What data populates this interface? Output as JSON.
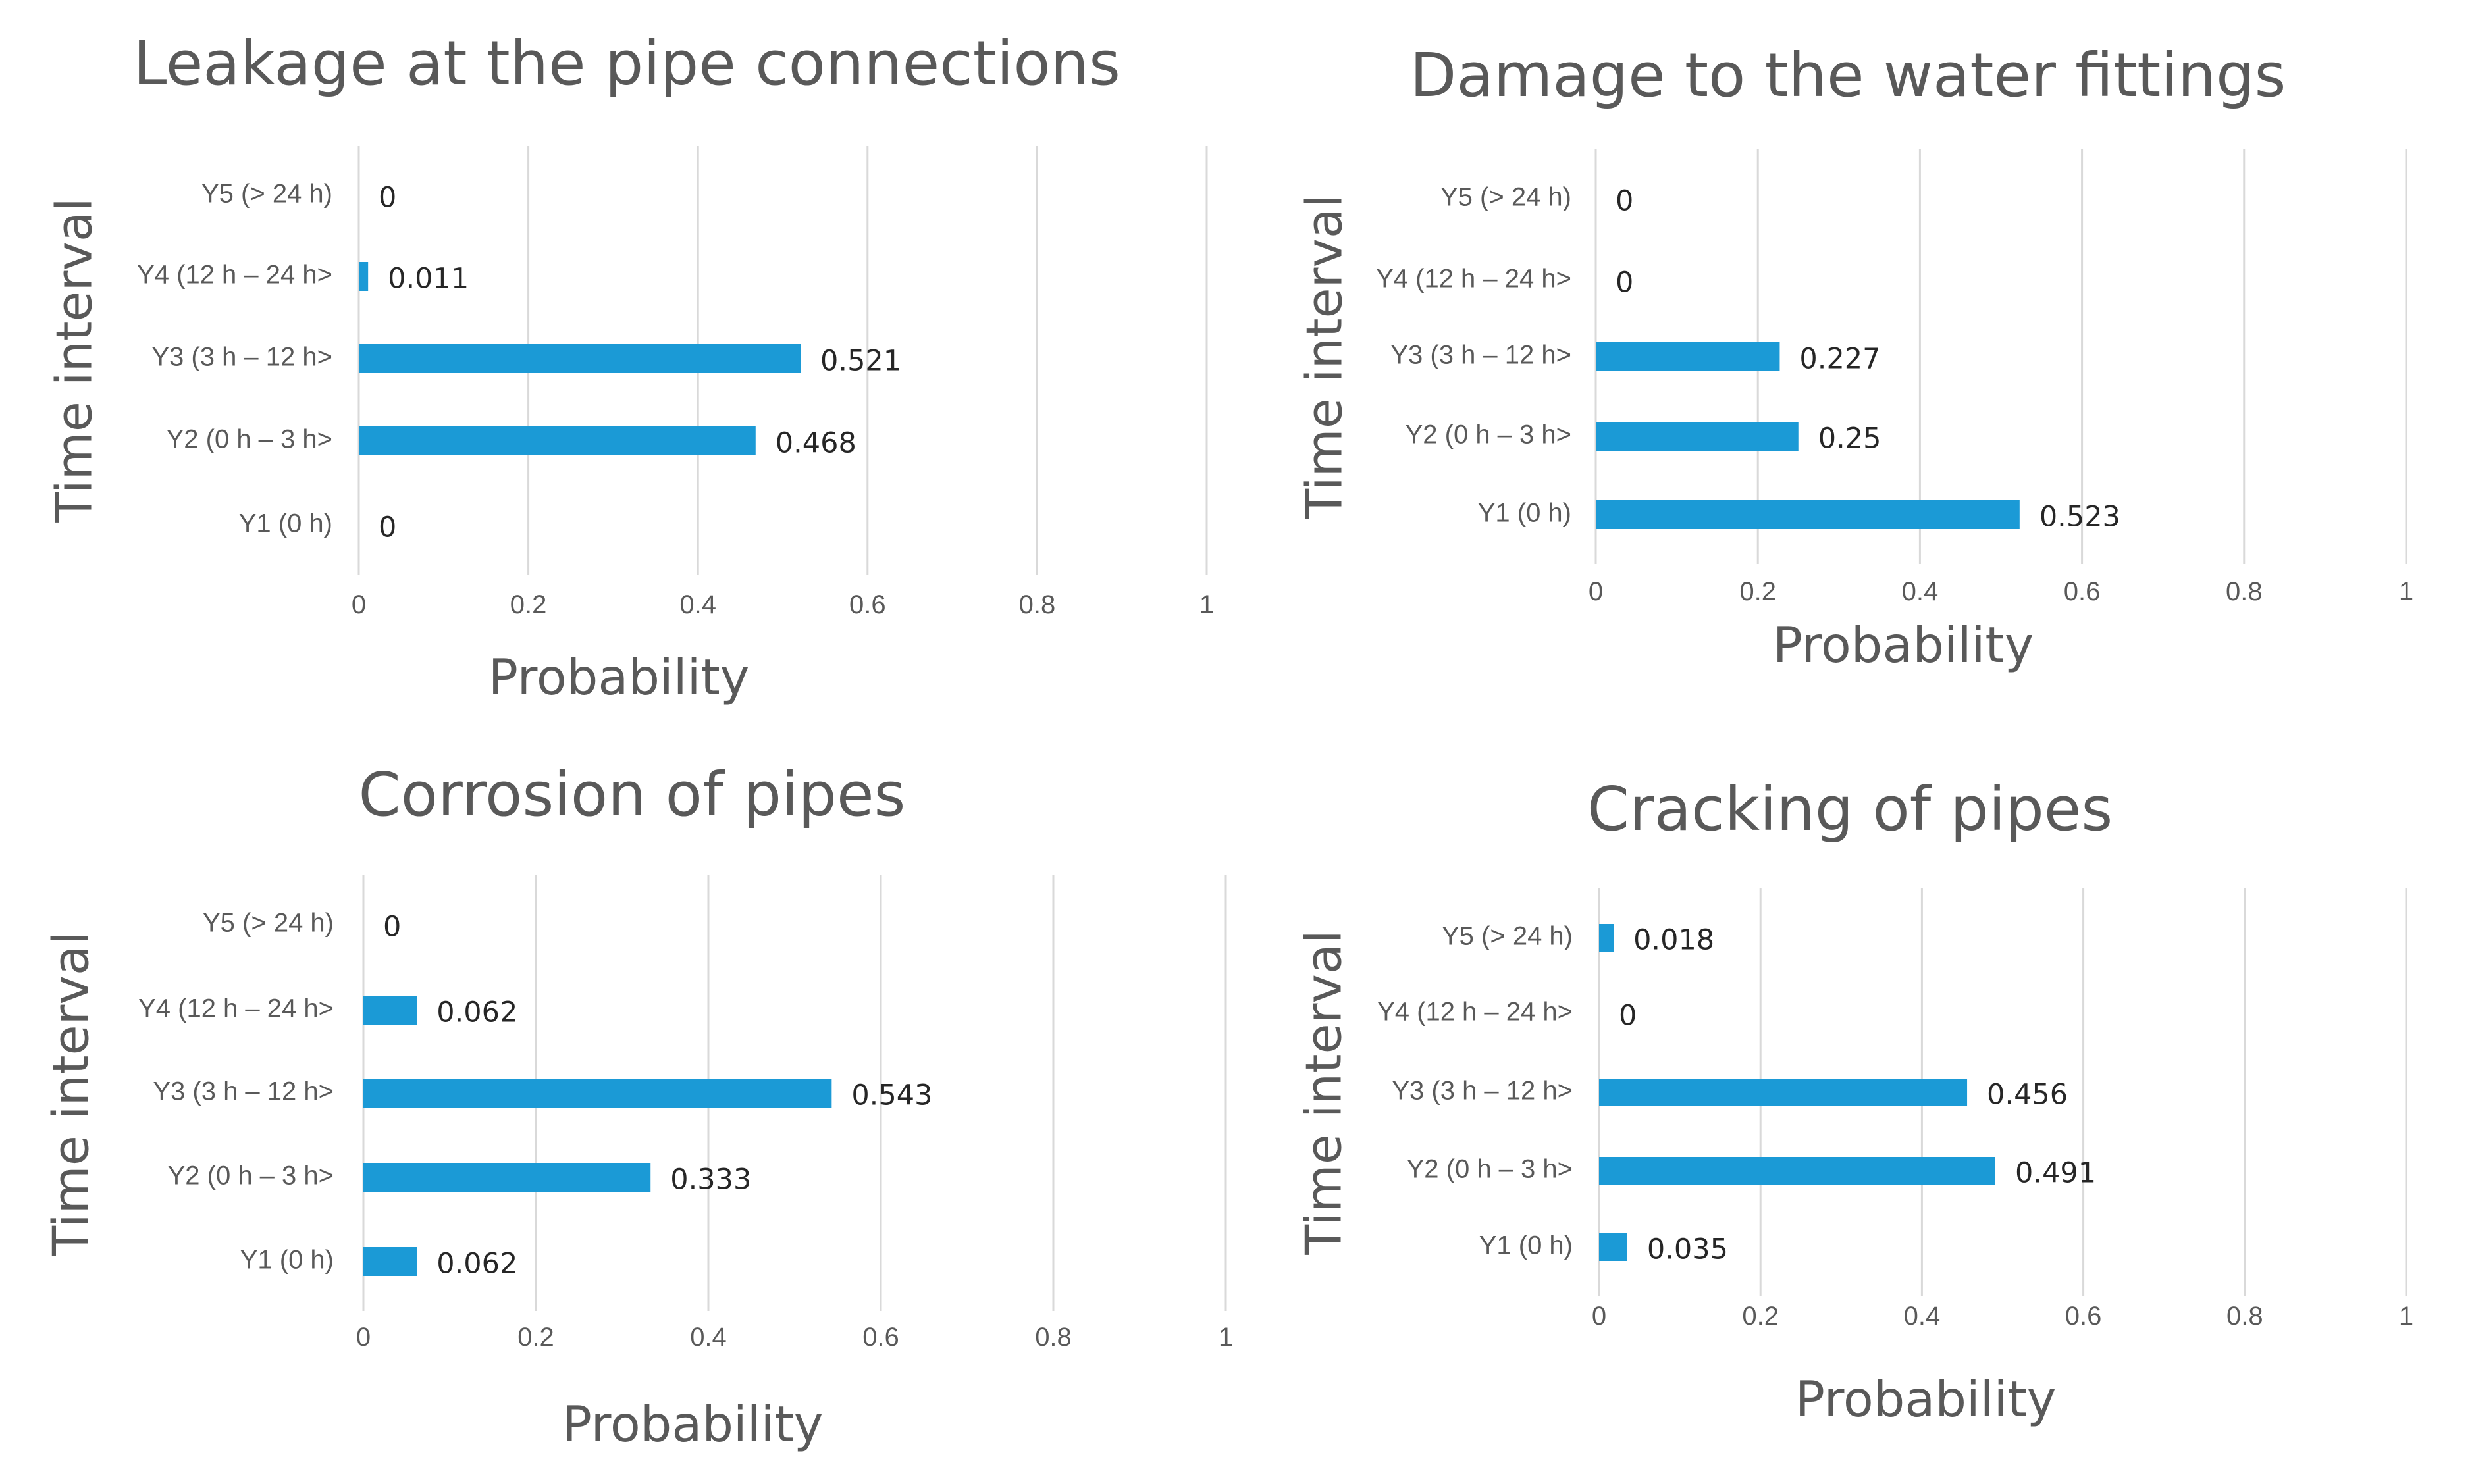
{
  "colors": {
    "bar": "#1b9ad6",
    "grid": "#d9d9d9",
    "text": "#595959",
    "data_label": "#262626"
  },
  "chart_data": [
    {
      "type": "bar",
      "orientation": "horizontal",
      "title": "Leakage at the pipe connections",
      "xlabel": "Probability",
      "ylabel": "Time interval",
      "xlim": [
        0,
        1
      ],
      "xticks": [
        "0",
        "0.2",
        "0.4",
        "0.6",
        "0.8",
        "1"
      ],
      "categories": [
        "Y5  (> 24 h)",
        "Y4  (12 h – 24 h>",
        "Y3 (3 h – 12 h>",
        "Y2 (0 h –  3 h>",
        "Y1 (0 h)"
      ],
      "values": [
        0,
        0.011,
        0.521,
        0.468,
        0
      ],
      "labels": [
        "0",
        "0.011",
        "0.521",
        "0.468",
        "0"
      ],
      "grid": true,
      "legend": "none"
    },
    {
      "type": "bar",
      "orientation": "horizontal",
      "title": "Damage to the water fittings",
      "xlabel": "Probability",
      "ylabel": "Time interval",
      "xlim": [
        0,
        1
      ],
      "xticks": [
        "0",
        "0.2",
        "0.4",
        "0.6",
        "0.8",
        "1"
      ],
      "categories": [
        "Y5  (> 24 h)",
        "Y4  (12 h – 24 h>",
        "Y3 (3 h – 12 h>",
        "Y2 (0 h –  3 h>",
        "Y1 (0 h)"
      ],
      "values": [
        0,
        0,
        0.227,
        0.25,
        0.523
      ],
      "labels": [
        "0",
        "0",
        "0.227",
        "0.25",
        "0.523"
      ],
      "grid": true,
      "legend": "none"
    },
    {
      "type": "bar",
      "orientation": "horizontal",
      "title": "Corrosion of pipes",
      "xlabel": "Probability",
      "ylabel": "Time interval",
      "xlim": [
        0,
        1
      ],
      "xticks": [
        "0",
        "0.2",
        "0.4",
        "0.6",
        "0.8",
        "1"
      ],
      "categories": [
        "Y5  (> 24 h)",
        "Y4  (12 h – 24 h>",
        "Y3 (3 h – 12 h>",
        "Y2 (0 h –  3 h>",
        "Y1 (0 h)"
      ],
      "values": [
        0,
        0.062,
        0.543,
        0.333,
        0.062
      ],
      "labels": [
        "0",
        "0.062",
        "0.543",
        "0.333",
        "0.062"
      ],
      "grid": true,
      "legend": "none"
    },
    {
      "type": "bar",
      "orientation": "horizontal",
      "title": "Cracking of pipes",
      "xlabel": "Probability",
      "ylabel": "Time interval",
      "xlim": [
        0,
        1
      ],
      "xticks": [
        "0",
        "0.2",
        "0.4",
        "0.6",
        "0.8",
        "1"
      ],
      "categories": [
        "Y5  (> 24 h)",
        "Y4  (12 h – 24 h>",
        "Y3 (3 h – 12 h>",
        "Y2 (0 h –  3 h>",
        "Y1 (0 h)"
      ],
      "values": [
        0.018,
        0,
        0.456,
        0.491,
        0.035
      ],
      "labels": [
        "0.018",
        "0",
        "0.456",
        "0.491",
        "0.035"
      ],
      "grid": true,
      "legend": "none"
    }
  ]
}
